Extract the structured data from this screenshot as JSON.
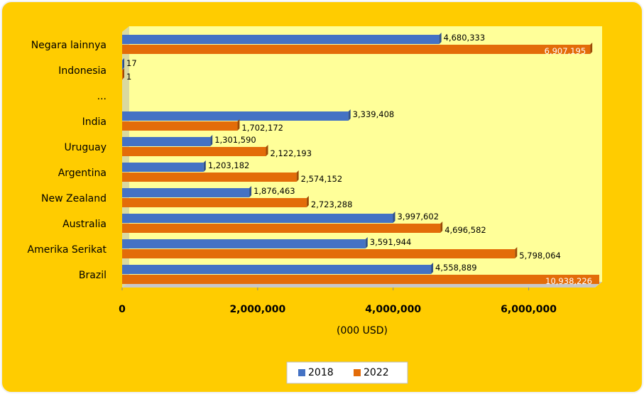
{
  "chart_data": {
    "type": "bar",
    "orientation": "horizontal",
    "categories": [
      "Negara lainnya",
      "Indonesia",
      "...",
      "India",
      "Uruguay",
      "Argentina",
      "New Zealand",
      "Australia",
      "Amerika Serikat",
      "Brazil"
    ],
    "series": [
      {
        "name": "2018",
        "color": "#4472c4",
        "values": [
          4680333,
          17,
          null,
          3339408,
          1301590,
          1203182,
          1876463,
          3997602,
          3591944,
          4558889
        ],
        "value_labels": [
          "4,680,333",
          "17",
          null,
          "3,339,408",
          "1,301,590",
          "1,203,182",
          "1,876,463",
          "3,997,602",
          "3,591,944",
          "4,558,889"
        ]
      },
      {
        "name": "2022",
        "color": "#e36c09",
        "values": [
          6907195,
          1,
          null,
          1702172,
          2122193,
          2574152,
          2723288,
          4696582,
          5798064,
          10938226
        ],
        "value_labels": [
          "6,907,195",
          "1",
          null,
          "1,702,172",
          "2,122,193",
          "2,574,152",
          "2,723,288",
          "4,696,582",
          "5,798,064",
          "10,938,226"
        ]
      }
    ],
    "x_label": "(000 USD)",
    "xlim": [
      0,
      7000000
    ],
    "xticks": [
      0,
      {
        "value": 2000000,
        "label": "2,000,000"
      },
      {
        "value": 4000000,
        "label": "4,000,000"
      },
      {
        "value": 6000000,
        "label": "6,000,000"
      }
    ],
    "legend": "bottom"
  }
}
